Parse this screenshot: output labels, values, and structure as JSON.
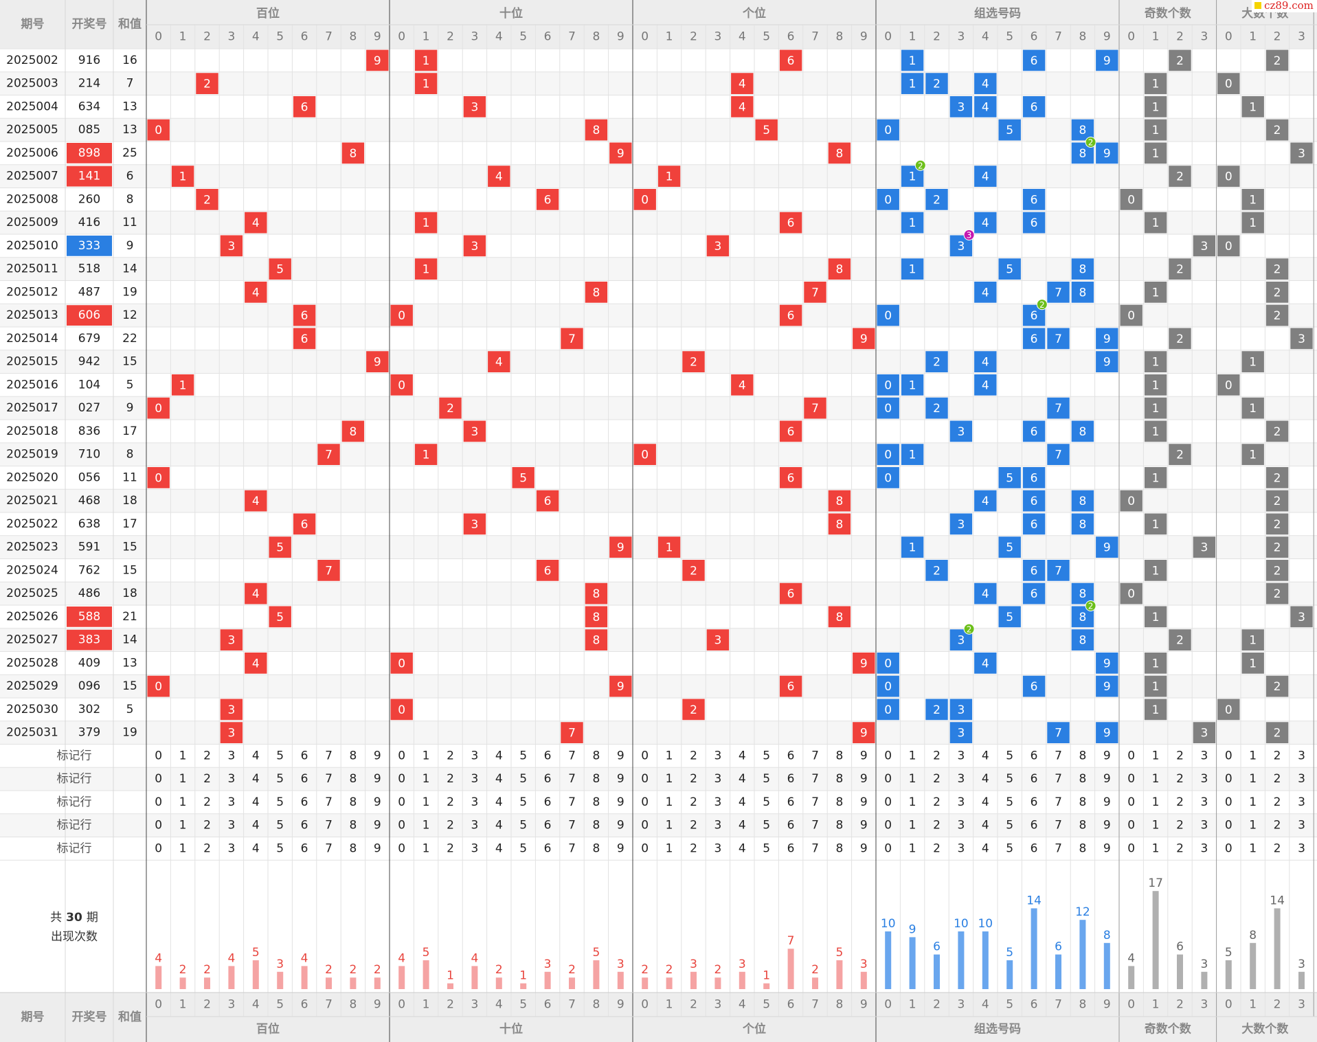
{
  "header": {
    "period": "期号",
    "number": "开奖号",
    "sum": "和值"
  },
  "groups": [
    {
      "name": "百位",
      "labels": [
        0,
        1,
        2,
        3,
        4,
        5,
        6,
        7,
        8,
        9
      ],
      "counts": [
        4,
        2,
        2,
        4,
        5,
        3,
        4,
        2,
        2,
        2
      ]
    },
    {
      "name": "十位",
      "labels": [
        0,
        1,
        2,
        3,
        4,
        5,
        6,
        7,
        8,
        9
      ],
      "counts": [
        4,
        5,
        1,
        4,
        2,
        1,
        3,
        2,
        5,
        3
      ]
    },
    {
      "name": "个位",
      "labels": [
        0,
        1,
        2,
        3,
        4,
        5,
        6,
        7,
        8,
        9
      ],
      "counts": [
        2,
        2,
        3,
        2,
        3,
        1,
        7,
        2,
        5,
        3
      ]
    },
    {
      "name": "组选号码",
      "labels": [
        0,
        1,
        2,
        3,
        4,
        5,
        6,
        7,
        8,
        9
      ],
      "counts": [
        10,
        9,
        6,
        10,
        10,
        5,
        14,
        6,
        12,
        8
      ]
    },
    {
      "name": "奇数个数",
      "labels": [
        0,
        1,
        2,
        3
      ],
      "counts": [
        4,
        17,
        6,
        3
      ]
    },
    {
      "name": "大数个数",
      "labels": [
        0,
        1,
        2,
        3
      ],
      "counts": [
        5,
        8,
        14,
        3
      ]
    }
  ],
  "rows": [
    {
      "period": "2025002",
      "digits": [
        9,
        1,
        6
      ],
      "sum": 16,
      "odd": 2,
      "big": 2
    },
    {
      "period": "2025003",
      "digits": [
        2,
        1,
        4
      ],
      "sum": 7,
      "odd": 1,
      "big": 0
    },
    {
      "period": "2025004",
      "digits": [
        6,
        3,
        4
      ],
      "sum": 13,
      "odd": 1,
      "big": 1
    },
    {
      "period": "2025005",
      "digits": [
        0,
        8,
        5
      ],
      "sum": 13,
      "odd": 1,
      "big": 2
    },
    {
      "period": "2025006",
      "digits": [
        8,
        9,
        8
      ],
      "sum": 25,
      "odd": 1,
      "big": 3,
      "repeat": 2
    },
    {
      "period": "2025007",
      "digits": [
        1,
        4,
        1
      ],
      "sum": 6,
      "odd": 2,
      "big": 0,
      "repeat": 2
    },
    {
      "period": "2025008",
      "digits": [
        2,
        6,
        0
      ],
      "sum": 8,
      "odd": 0,
      "big": 1
    },
    {
      "period": "2025009",
      "digits": [
        4,
        1,
        6
      ],
      "sum": 11,
      "odd": 1,
      "big": 1
    },
    {
      "period": "2025010",
      "digits": [
        3,
        3,
        3
      ],
      "sum": 9,
      "odd": 3,
      "big": 0,
      "repeat": 3
    },
    {
      "period": "2025011",
      "digits": [
        5,
        1,
        8
      ],
      "sum": 14,
      "odd": 2,
      "big": 2
    },
    {
      "period": "2025012",
      "digits": [
        4,
        8,
        7
      ],
      "sum": 19,
      "odd": 1,
      "big": 2
    },
    {
      "period": "2025013",
      "digits": [
        6,
        0,
        6
      ],
      "sum": 12,
      "odd": 0,
      "big": 2,
      "repeat": 2
    },
    {
      "period": "2025014",
      "digits": [
        6,
        7,
        9
      ],
      "sum": 22,
      "odd": 2,
      "big": 3
    },
    {
      "period": "2025015",
      "digits": [
        9,
        4,
        2
      ],
      "sum": 15,
      "odd": 1,
      "big": 1
    },
    {
      "period": "2025016",
      "digits": [
        1,
        0,
        4
      ],
      "sum": 5,
      "odd": 1,
      "big": 0
    },
    {
      "period": "2025017",
      "digits": [
        0,
        2,
        7
      ],
      "sum": 9,
      "odd": 1,
      "big": 1
    },
    {
      "period": "2025018",
      "digits": [
        8,
        3,
        6
      ],
      "sum": 17,
      "odd": 1,
      "big": 2
    },
    {
      "period": "2025019",
      "digits": [
        7,
        1,
        0
      ],
      "sum": 8,
      "odd": 2,
      "big": 1
    },
    {
      "period": "2025020",
      "digits": [
        0,
        5,
        6
      ],
      "sum": 11,
      "odd": 1,
      "big": 2
    },
    {
      "period": "2025021",
      "digits": [
        4,
        6,
        8
      ],
      "sum": 18,
      "odd": 0,
      "big": 2
    },
    {
      "period": "2025022",
      "digits": [
        6,
        3,
        8
      ],
      "sum": 17,
      "odd": 1,
      "big": 2
    },
    {
      "period": "2025023",
      "digits": [
        5,
        9,
        1
      ],
      "sum": 15,
      "odd": 3,
      "big": 2
    },
    {
      "period": "2025024",
      "digits": [
        7,
        6,
        2
      ],
      "sum": 15,
      "odd": 1,
      "big": 2
    },
    {
      "period": "2025025",
      "digits": [
        4,
        8,
        6
      ],
      "sum": 18,
      "odd": 0,
      "big": 2
    },
    {
      "period": "2025026",
      "digits": [
        5,
        8,
        8
      ],
      "sum": 21,
      "odd": 1,
      "big": 3,
      "repeat": 2
    },
    {
      "period": "2025027",
      "digits": [
        3,
        8,
        3
      ],
      "sum": 14,
      "odd": 2,
      "big": 1,
      "repeat": 2
    },
    {
      "period": "2025028",
      "digits": [
        4,
        0,
        9
      ],
      "sum": 13,
      "odd": 1,
      "big": 1
    },
    {
      "period": "2025029",
      "digits": [
        0,
        9,
        6
      ],
      "sum": 15,
      "odd": 1,
      "big": 2
    },
    {
      "period": "2025030",
      "digits": [
        3,
        0,
        2
      ],
      "sum": 5,
      "odd": 1,
      "big": 0
    },
    {
      "period": "2025031",
      "digits": [
        3,
        7,
        9
      ],
      "sum": 19,
      "odd": 3,
      "big": 2
    }
  ],
  "marker_label": "标记行",
  "footer": {
    "total_prefix": "共",
    "total": 30,
    "total_suffix": "期",
    "counts_label": "出现次数"
  },
  "watermark": "cz89.com"
}
